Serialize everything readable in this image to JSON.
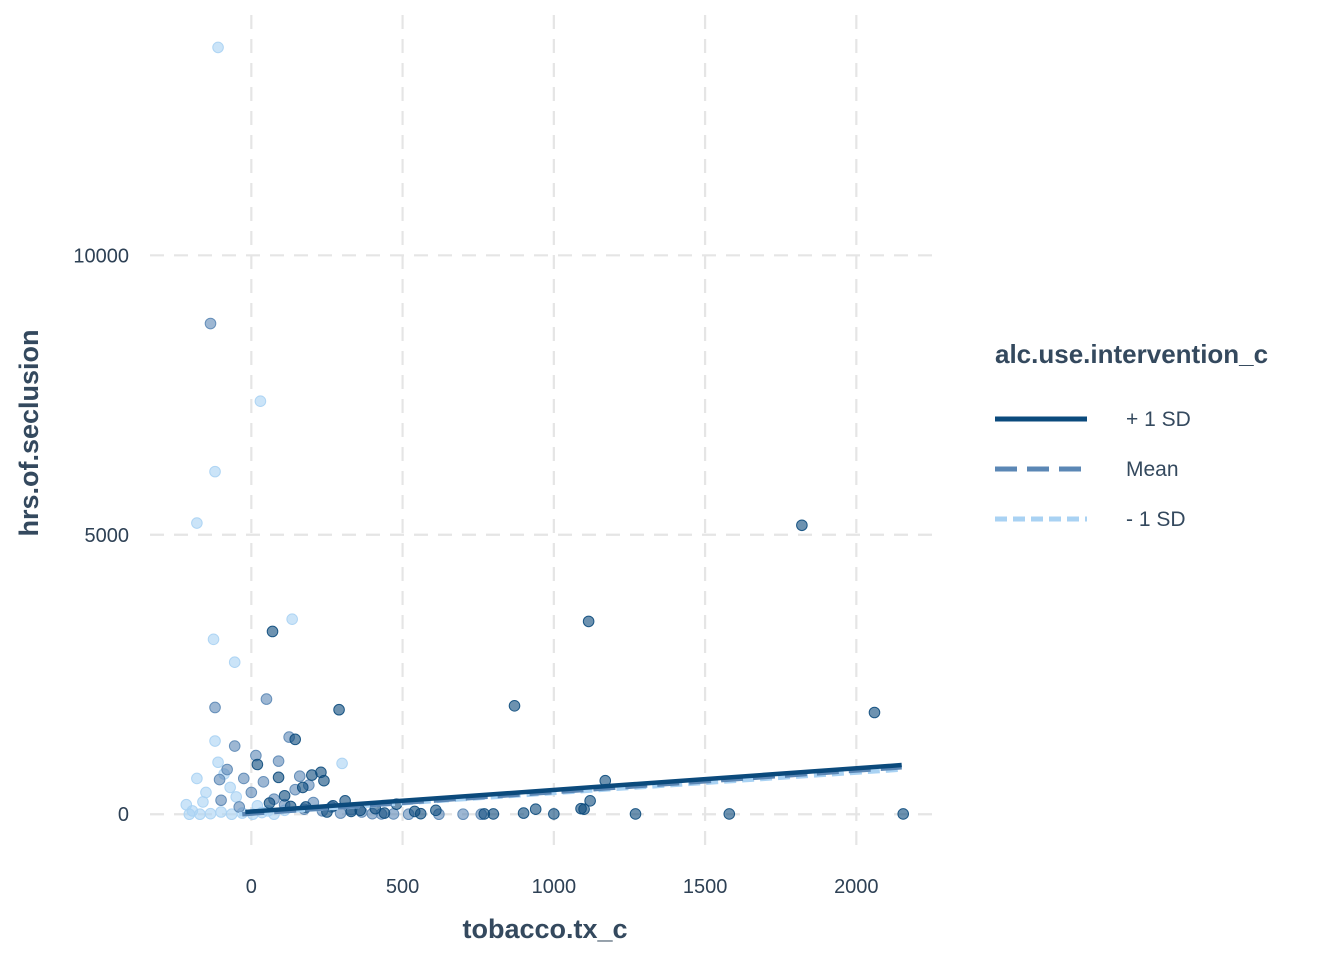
{
  "chart_data": {
    "type": "scatter",
    "xlabel": "tobacco.tx_c",
    "ylabel": "hrs.of.seclusion",
    "xlim": [
      -335,
      2270
    ],
    "ylim": [
      -640,
      14300
    ],
    "xticks": [
      0,
      500,
      1000,
      1500,
      2000
    ],
    "yticks": [
      0,
      5000,
      10000
    ],
    "xtick_labels": [
      "0",
      "500",
      "1000",
      "1500",
      "2000"
    ],
    "ytick_labels": [
      "0",
      "5000",
      "10000"
    ],
    "grid": true,
    "legend": {
      "title": "alc.use.intervention_c",
      "placement": "right",
      "entries": [
        {
          "label": "+ 1 SD",
          "color": "#0b4a7c",
          "dash": "solid"
        },
        {
          "label": "Mean",
          "color": "#5b87b5",
          "dash": "dashed"
        },
        {
          "label": "- 1 SD",
          "color": "#a9d2f3",
          "dash": "dotted"
        }
      ]
    },
    "series": [
      {
        "name": "+ 1 SD",
        "color": "#0b4a7c",
        "line": {
          "x": [
            -20,
            2150
          ],
          "y": [
            40,
            880
          ]
        },
        "points": {
          "x": [
            70,
            290,
            870,
            1115,
            1820,
            2060,
            2155,
            145,
            230,
            240,
            1170,
            1120,
            1100,
            940,
            900,
            610,
            540,
            480,
            410,
            360,
            310,
            270,
            200,
            170,
            130,
            90,
            60,
            20,
            1000,
            1270,
            1580,
            770,
            560,
            440,
            330,
            180,
            110,
            1090,
            800,
            250
          ],
          "y": [
            3270,
            1870,
            1940,
            3450,
            5170,
            1820,
            5,
            1340,
            750,
            600,
            600,
            240,
            90,
            90,
            20,
            70,
            50,
            180,
            100,
            70,
            240,
            150,
            700,
            480,
            140,
            660,
            200,
            890,
            5,
            5,
            5,
            5,
            10,
            20,
            50,
            130,
            330,
            100,
            5,
            40
          ]
        }
      },
      {
        "name": "Mean",
        "color": "#5b87b5",
        "line": {
          "x": [
            -30,
            2150
          ],
          "y": [
            0,
            840
          ]
        },
        "points": {
          "x": [
            -135,
            -120,
            -105,
            -100,
            -55,
            -25,
            15,
            50,
            90,
            125,
            160,
            190,
            -80,
            -40,
            0,
            40,
            75,
            110,
            145,
            175,
            205,
            235,
            265,
            295,
            330,
            365,
            400,
            430,
            470,
            520,
            620,
            700,
            760
          ],
          "y": [
            8780,
            1910,
            620,
            250,
            1220,
            640,
            1050,
            2060,
            950,
            1380,
            680,
            520,
            800,
            130,
            390,
            580,
            270,
            170,
            440,
            90,
            210,
            60,
            130,
            20,
            80,
            40,
            10,
            5,
            5,
            0,
            0,
            0,
            0
          ]
        }
      },
      {
        "name": "- 1 SD",
        "color": "#a9d2f3",
        "line": {
          "x": [
            -40,
            2150
          ],
          "y": [
            0,
            800
          ]
        },
        "points": {
          "x": [
            -110,
            30,
            -120,
            -180,
            -125,
            -55,
            -120,
            135,
            300,
            -180,
            -110,
            -90,
            -150,
            -215,
            -195,
            -160,
            -70,
            -50,
            20,
            55,
            110,
            -205,
            -170,
            -135,
            -100,
            -65,
            -30,
            5,
            35,
            75
          ],
          "y": [
            13720,
            7390,
            6130,
            5210,
            3130,
            2720,
            1310,
            3490,
            910,
            640,
            930,
            720,
            390,
            170,
            60,
            220,
            480,
            310,
            150,
            60,
            70,
            0,
            0,
            10,
            40,
            0,
            20,
            0,
            30,
            0
          ]
        }
      }
    ]
  }
}
